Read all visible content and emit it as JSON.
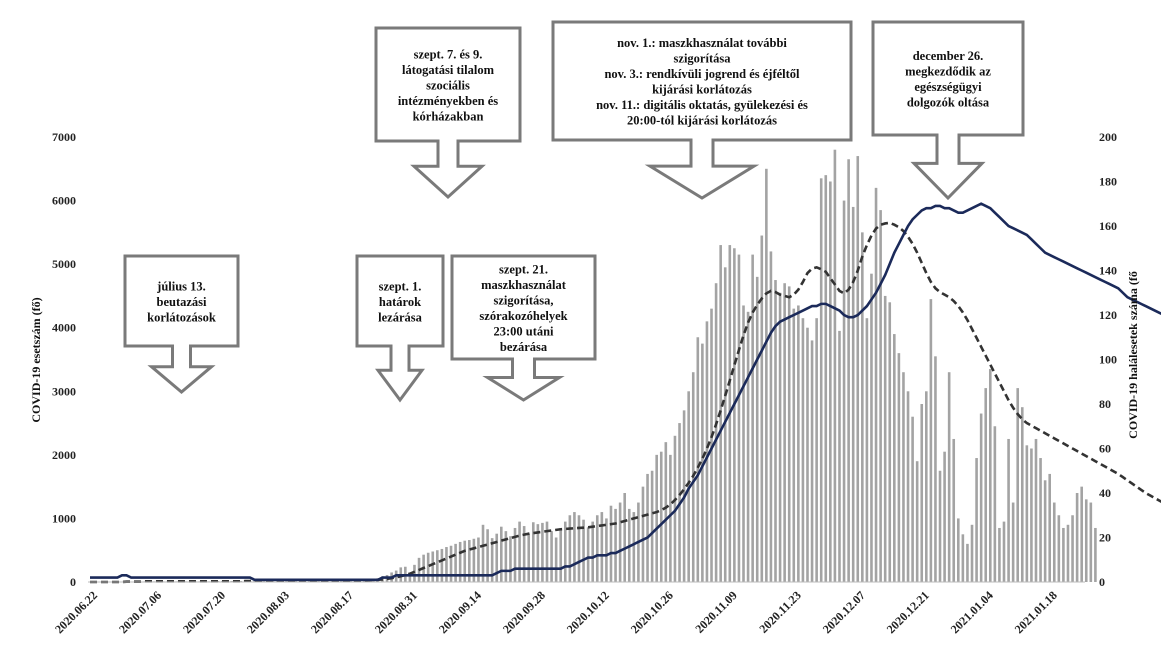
{
  "chart_data": {
    "type": "bar+line",
    "title": "",
    "ylabel": "COVID-19 esetszám (fő)",
    "y2label": "COVID-19 halálesetek száma (fő",
    "xlabel": "",
    "ylim": [
      0,
      7000
    ],
    "y2lim": [
      0,
      200
    ],
    "yticks": [
      0,
      1000,
      2000,
      3000,
      4000,
      5000,
      6000,
      7000
    ],
    "y2ticks": [
      0,
      20,
      40,
      60,
      80,
      100,
      120,
      140,
      160,
      180,
      200
    ],
    "xticks": [
      "2020.06.22",
      "2020.07.06",
      "2020.07.20",
      "2020.08.03",
      "2020.08.17",
      "2020.08.31",
      "2020.09.14",
      "2020.09.28",
      "2020.10.12",
      "2020.10.26",
      "2020.11.09",
      "2020.11.23",
      "2020.12.07",
      "2020.12.21",
      "2021.01.04",
      "2021.01.18"
    ],
    "grid": false,
    "legend": "none",
    "colors": {
      "bars": "#a3a3a3",
      "solid_line": "#1b2a5a",
      "dashed_line": "#333333",
      "callout": "#7a7a7a"
    },
    "series": [
      {
        "type": "bar",
        "axis": "left",
        "x_start": "2020.06.22",
        "x_step_days": 1,
        "values": [
          0,
          0,
          0,
          0,
          0,
          0,
          0,
          0,
          0,
          0,
          0,
          0,
          10,
          10,
          10,
          10,
          10,
          10,
          10,
          10,
          10,
          10,
          10,
          10,
          10,
          10,
          10,
          10,
          15,
          15,
          15,
          15,
          15,
          15,
          15,
          15,
          15,
          15,
          15,
          15,
          20,
          25,
          25,
          25,
          25,
          25,
          25,
          25,
          25,
          25,
          25,
          25,
          35,
          30,
          30,
          30,
          30,
          30,
          30,
          30,
          35,
          30,
          40,
          60,
          90,
          110,
          150,
          180,
          230,
          240,
          150,
          270,
          380,
          430,
          460,
          480,
          500,
          520,
          550,
          570,
          600,
          630,
          650,
          660,
          680,
          700,
          900,
          830,
          690,
          760,
          870,
          800,
          720,
          850,
          950,
          880,
          760,
          940,
          910,
          930,
          950,
          800,
          700,
          850,
          950,
          1050,
          1100,
          1050,
          980,
          860,
          950,
          1050,
          1100,
          1000,
          1200,
          1150,
          1250,
          1400,
          1150,
          1100,
          1250,
          1500,
          1700,
          1750,
          2000,
          2050,
          2200,
          2000,
          2300,
          2500,
          2700,
          3000,
          3300,
          3850,
          3750,
          4100,
          4300,
          4700,
          5300,
          4950,
          5300,
          5250,
          5150,
          4350,
          4250,
          5150,
          4800,
          5450,
          6500,
          5200,
          4750,
          4550,
          4700,
          4650,
          4300,
          4350,
          4150,
          4000,
          3800,
          4150,
          6350,
          6400,
          6300,
          6800,
          3950,
          6000,
          6650,
          5900,
          6700,
          5500,
          4150,
          4850,
          6200,
          5850,
          4500,
          4400,
          3900,
          3600,
          3300,
          3000,
          2600,
          1900,
          2800,
          3000,
          4450,
          3550,
          1750,
          2050,
          3300,
          2250,
          1000,
          750,
          600,
          900,
          1950,
          2650,
          3050,
          3350,
          2450,
          850,
          950,
          2250,
          1250,
          3050,
          2750,
          2150,
          2100,
          2250,
          1950,
          1600,
          1700,
          1250,
          1050,
          850,
          900,
          1050,
          1400,
          1500,
          1300,
          1250,
          850
        ]
      },
      {
        "type": "line",
        "style": "solid",
        "axis": "right",
        "x_start": "2020.06.22",
        "x_step_days": 1,
        "values": [
          2,
          2,
          2,
          2,
          2,
          2,
          2,
          3,
          3,
          2,
          2,
          2,
          2,
          2,
          2,
          2,
          2,
          2,
          2,
          2,
          2,
          2,
          2,
          2,
          2,
          2,
          2,
          2,
          2,
          2,
          2,
          2,
          2,
          2,
          2,
          2,
          1,
          1,
          1,
          1,
          1,
          1,
          1,
          1,
          1,
          1,
          1,
          1,
          1,
          1,
          1,
          1,
          1,
          1,
          1,
          1,
          1,
          1,
          1,
          1,
          1,
          1,
          1,
          1,
          2,
          2,
          2,
          3,
          3,
          3,
          3,
          3,
          3,
          3,
          3,
          3,
          3,
          3,
          3,
          3,
          3,
          3,
          3,
          3,
          3,
          3,
          3,
          3,
          3,
          4,
          5,
          5,
          5,
          6,
          6,
          6,
          6,
          6,
          6,
          6,
          6,
          6,
          6,
          6,
          7,
          7,
          8,
          9,
          10,
          11,
          11,
          12,
          12,
          12,
          13,
          13,
          14,
          15,
          16,
          17,
          18,
          19,
          20,
          22,
          24,
          26,
          28,
          30,
          32,
          35,
          38,
          42,
          45,
          48,
          52,
          56,
          60,
          64,
          68,
          72,
          76,
          80,
          84,
          88,
          92,
          96,
          100,
          104,
          108,
          112,
          115,
          117,
          118,
          119,
          120,
          121,
          122,
          123,
          124,
          124,
          125,
          125,
          124,
          123,
          122,
          120,
          119,
          119,
          120,
          122,
          124,
          127,
          130,
          134,
          138,
          143,
          148,
          152,
          156,
          160,
          163,
          165,
          167,
          168,
          168,
          169,
          169,
          168,
          168,
          167,
          166,
          166,
          167,
          168,
          169,
          170,
          169,
          168,
          166,
          164,
          162,
          160,
          159,
          158,
          157,
          156,
          154,
          152,
          150,
          148,
          147,
          146,
          145,
          144,
          143,
          142,
          141,
          140,
          139,
          138,
          137,
          136,
          135,
          134,
          133,
          132,
          130,
          128,
          127,
          126,
          125,
          124,
          123,
          122,
          121,
          120,
          119,
          118,
          117,
          116,
          115,
          114,
          113,
          112,
          111,
          110,
          109,
          108,
          107,
          106,
          105,
          104,
          103,
          102,
          101,
          100,
          99,
          98,
          97,
          96,
          95,
          94,
          93,
          92,
          91,
          90,
          89,
          88,
          87,
          86,
          85,
          84,
          83,
          82,
          81,
          80,
          79,
          78,
          77
        ]
      },
      {
        "type": "line",
        "style": "dashed",
        "axis": "left",
        "x_start": "2020.06.22",
        "x_step_days": 1,
        "values": [
          0,
          0,
          0,
          0,
          0,
          0,
          0,
          0,
          5,
          5,
          5,
          5,
          10,
          10,
          10,
          10,
          10,
          10,
          10,
          10,
          10,
          10,
          10,
          10,
          10,
          10,
          10,
          10,
          10,
          10,
          10,
          10,
          10,
          10,
          15,
          15,
          15,
          15,
          15,
          15,
          15,
          15,
          15,
          20,
          20,
          20,
          20,
          25,
          25,
          25,
          25,
          25,
          25,
          25,
          25,
          25,
          25,
          25,
          25,
          25,
          25,
          30,
          30,
          35,
          40,
          50,
          60,
          75,
          90,
          110,
          130,
          160,
          190,
          220,
          250,
          280,
          310,
          340,
          370,
          400,
          430,
          460,
          490,
          510,
          530,
          550,
          570,
          590,
          610,
          630,
          650,
          670,
          690,
          710,
          730,
          745,
          760,
          770,
          780,
          790,
          800,
          810,
          820,
          830,
          835,
          840,
          845,
          850,
          855,
          860,
          870,
          880,
          890,
          900,
          910,
          920,
          940,
          960,
          980,
          1000,
          1020,
          1040,
          1060,
          1080,
          1100,
          1130,
          1170,
          1220,
          1290,
          1370,
          1460,
          1560,
          1670,
          1800,
          1940,
          2100,
          2280,
          2480,
          2700,
          2930,
          3170,
          3410,
          3650,
          3880,
          4080,
          4240,
          4360,
          4460,
          4540,
          4580,
          4560,
          4520,
          4500,
          4480,
          4520,
          4600,
          4720,
          4860,
          4930,
          4950,
          4920,
          4880,
          4780,
          4680,
          4580,
          4540,
          4600,
          4720,
          4900,
          5120,
          5300,
          5450,
          5560,
          5620,
          5640,
          5650,
          5620,
          5580,
          5520,
          5430,
          5320,
          5180,
          5020,
          4860,
          4720,
          4620,
          4560,
          4520,
          4480,
          4420,
          4340,
          4240,
          4120,
          3980,
          3840,
          3700,
          3560,
          3420,
          3280,
          3140,
          3000,
          2860,
          2740,
          2640,
          2560,
          2500,
          2460,
          2420,
          2380,
          2340,
          2300,
          2260,
          2220,
          2180,
          2140,
          2100,
          2060,
          2020,
          1980,
          1940,
          1900,
          1860,
          1820,
          1780,
          1740,
          1700,
          1650,
          1600,
          1550,
          1500,
          1450,
          1400,
          1360,
          1320,
          1280,
          1240,
          1200,
          1160,
          1130,
          1100,
          1070,
          1040
        ]
      }
    ],
    "callouts": [
      {
        "id": "jul13",
        "lines": [
          "július 13.",
          "beutazási",
          "korlátozások"
        ]
      },
      {
        "id": "sep1",
        "lines": [
          "szept. 1.",
          "határok",
          "lezárása"
        ]
      },
      {
        "id": "sep21",
        "lines": [
          "szept. 21.",
          "maszkhasználat",
          "szigorítása,",
          "szórakozóhelyek",
          "23:00 utáni",
          "bezárása"
        ]
      },
      {
        "id": "sep7",
        "lines": [
          "szept. 7. és 9.",
          "látogatási tilalom",
          "szociális",
          "intézményekben és",
          "kórházakban"
        ]
      },
      {
        "id": "nov",
        "lines": [
          "nov. 1.: maszkhasználat további",
          "szigorítása",
          "nov. 3.: rendkívüli jogrend és éjféltől",
          "kijárási korlátozás",
          "nov. 11.: digitális oktatás, gyülekezési és",
          "20:00-tól kijárási korlátozás"
        ]
      },
      {
        "id": "dec26",
        "lines": [
          "december 26.",
          "megkezdődik az",
          "egészségügyi",
          "dolgozók oltása"
        ]
      }
    ]
  }
}
